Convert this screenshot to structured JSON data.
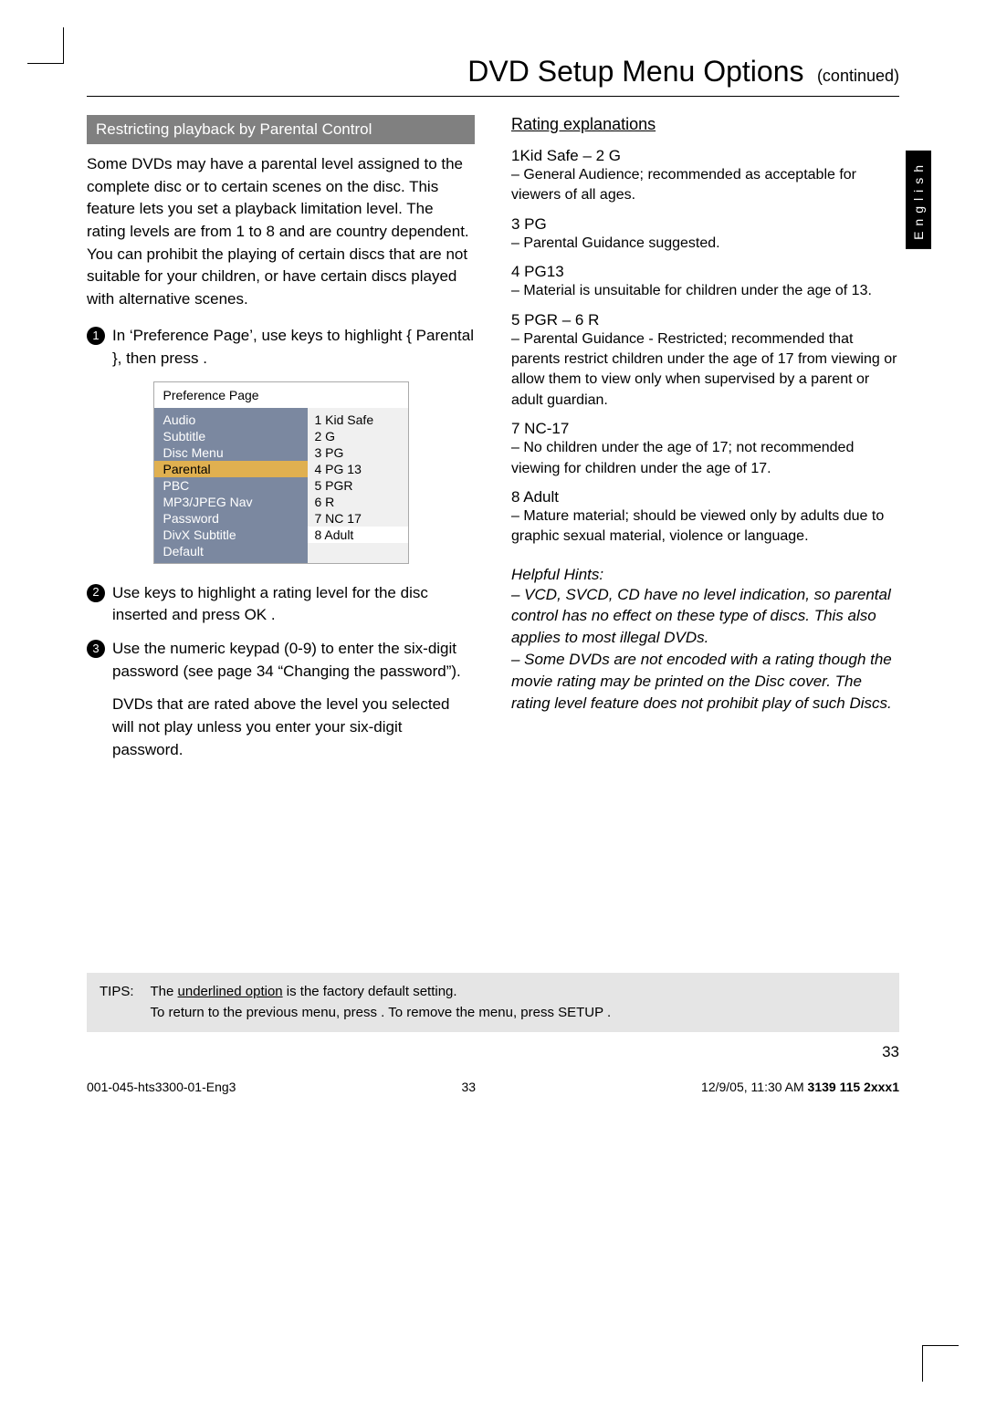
{
  "title": {
    "main": "DVD Setup Menu Options",
    "continued": "(continued)"
  },
  "lang_tab": "English",
  "left": {
    "section_header": "Restricting playback by Parental Control",
    "intro": "Some DVDs may have a parental level assigned to the complete disc or to certain scenes on the disc.  This feature lets you set a playback limitation level.  The rating levels are from 1 to 8 and are country dependent.  You can prohibit the playing of certain discs that are not suitable for your children, or have certain discs played with alternative scenes.",
    "step1_a": "In ‘Preference Page’, use ",
    "step1_b": " keys to highlight {  Parental  }, then press    .",
    "pref": {
      "title": "Preference Page",
      "left_items": [
        "Audio",
        "Subtitle",
        "Disc Menu",
        "Parental",
        "PBC",
        "MP3/JPEG Nav",
        "Password",
        "DivX Subtitle",
        "Default"
      ],
      "selected_index": 3,
      "right_items": [
        "1  Kid Safe",
        "2  G",
        "3  PG",
        "4  PG 13",
        "5  PGR",
        "6  R",
        "7  NC 17",
        "8  Adult"
      ]
    },
    "step2": "Use          keys to highlight a rating level for the disc inserted and press OK .",
    "step3": "Use the  numeric keypad (0-9)   to enter the six-digit password (see page 34 “Changing the password”).",
    "step3_tail": "DVDs that are rated above the level you selected will not play unless you enter your six-digit password."
  },
  "right": {
    "heading": "Rating explanations",
    "items": [
      {
        "label": "1Kid Safe – 2 G",
        "desc": "–   General Audience; recommended as acceptable for viewers of all ages."
      },
      {
        "label": "3 PG",
        "desc": "–   Parental Guidance suggested."
      },
      {
        "label": "4 PG13",
        "desc": "–   Material is unsuitable for children under the age of 13."
      },
      {
        "label": "5 PGR – 6 R",
        "desc": "–   Parental Guidance - Restricted; recommended that parents restrict children under the age of 17 from viewing or allow them to view only when supervised by a parent or adult guardian."
      },
      {
        "label": "7 NC-17",
        "desc": "–   No children under the age of 17; not recommended viewing for children under the age of 17."
      },
      {
        "label": "8  Adult",
        "desc": "–   Mature material; should be viewed only by adults due to graphic sexual material, violence or language."
      }
    ],
    "hints_title": "Helpful Hints:",
    "hints": [
      "–  VCD, SVCD, CD have no level indication, so parental control has no effect on these type of discs. This also applies to most illegal DVDs.",
      "–  Some DVDs are not encoded with a rating though the movie rating may be printed on the Disc cover.  The rating level feature does not prohibit play of such Discs."
    ]
  },
  "tips": {
    "label": "TIPS:",
    "line1_a": "The ",
    "line1_u": "underlined option",
    "line1_b": " is the factory default setting.",
    "line2": "To return to the previous menu, press    .  To remove the menu, press  SETUP ."
  },
  "page_num": "33",
  "footer": {
    "left": "001-045-hts3300-01-Eng3",
    "mid": "33",
    "right_a": "12/9/05, 11:30 AM ",
    "right_b": "3139 115 2xxx1"
  }
}
